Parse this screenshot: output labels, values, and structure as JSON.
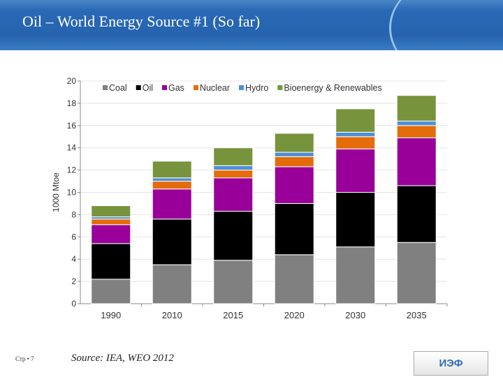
{
  "slide": {
    "title": "Oil – World Energy Source #1 (So far)",
    "page": "Стр • 7",
    "source": "Source: IEA, WEO 2012",
    "badge": "ИЭФ"
  },
  "chart_data": {
    "type": "bar",
    "stacked": true,
    "ylabel": "1000 Mtoe",
    "ylim": [
      0,
      20
    ],
    "yticks": [
      0,
      2,
      4,
      6,
      8,
      10,
      12,
      14,
      16,
      18,
      20
    ],
    "grid": true,
    "legend": "top",
    "categories": [
      "1990",
      "2010",
      "2015",
      "2020",
      "2030",
      "2035"
    ],
    "series": [
      {
        "name": "Coal",
        "color": "#808080",
        "values": [
          2.2,
          3.5,
          3.9,
          4.4,
          5.1,
          5.5
        ]
      },
      {
        "name": "Oil",
        "color": "#000000",
        "values": [
          3.2,
          4.1,
          4.4,
          4.6,
          4.9,
          5.1
        ]
      },
      {
        "name": "Gas",
        "color": "#990099",
        "values": [
          1.7,
          2.7,
          3.0,
          3.3,
          3.9,
          4.3
        ]
      },
      {
        "name": "Nuclear",
        "color": "#e46c0a",
        "values": [
          0.5,
          0.7,
          0.7,
          0.9,
          1.1,
          1.1
        ]
      },
      {
        "name": "Hydro",
        "color": "#4f8fd6",
        "values": [
          0.2,
          0.3,
          0.4,
          0.4,
          0.4,
          0.4
        ]
      },
      {
        "name": "Bioenergy & Renewables",
        "color": "#77933c",
        "values": [
          1.0,
          1.5,
          1.6,
          1.7,
          2.1,
          2.3
        ]
      }
    ]
  }
}
